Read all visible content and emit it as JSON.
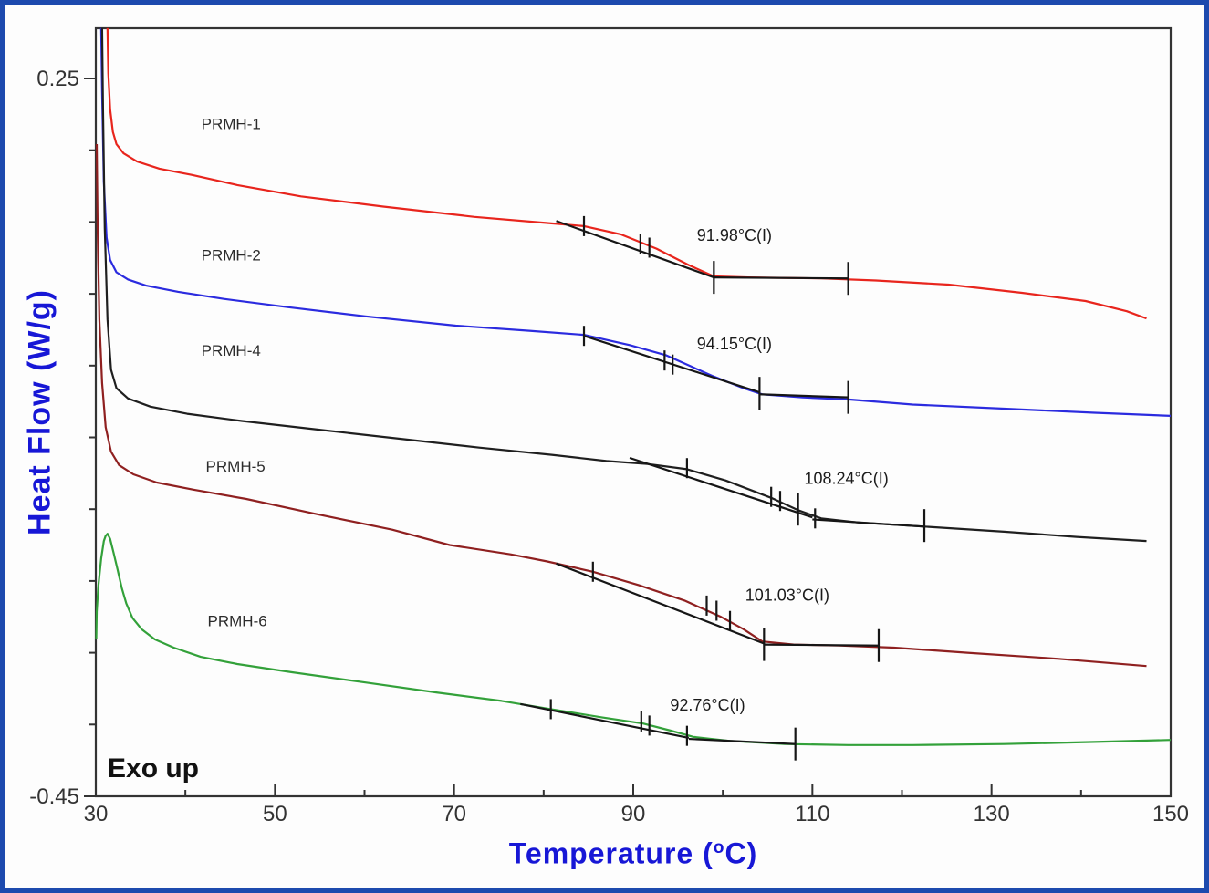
{
  "figure": {
    "border_color": "#1d4aae",
    "background": "#fdfdfd",
    "axis_color": "#333333",
    "axis_label_color": "#1717d6",
    "exo_label": "Exo up",
    "xlabel_pre": "Temperature (",
    "xlabel_sup": "o",
    "xlabel_post": "C)",
    "ylabel": "Heat Flow (W/g)"
  },
  "chart_data": {
    "type": "line",
    "title": "",
    "xlabel": "Temperature (°C)",
    "ylabel": "Heat Flow (W/g)",
    "xlim": [
      30,
      150
    ],
    "ylim": [
      -0.45,
      0.25
    ],
    "grid": false,
    "legend_position": "inline-labels",
    "xticks": [
      30,
      50,
      70,
      90,
      110,
      130,
      150
    ],
    "xticks_minor": [
      40,
      60,
      80,
      100,
      120,
      140
    ],
    "ytick_start": 0.25,
    "ytick_step": 0.07,
    "ytick_count": 11,
    "ytick_labels": [
      {
        "value": 0.25,
        "text": "0.25"
      },
      {
        "value": -0.45,
        "text": "-0.45"
      }
    ],
    "series": [
      {
        "name": "PRMH-1",
        "color": "#e8251d",
        "glass_transition_C": 91.98,
        "label": {
          "text": "PRMH-1",
          "x": 45.1,
          "y": 0.206
        },
        "points": [
          [
            31.3,
            0.299
          ],
          [
            31.4,
            0.255
          ],
          [
            31.6,
            0.22
          ],
          [
            31.9,
            0.198
          ],
          [
            32.3,
            0.186
          ],
          [
            33.1,
            0.177
          ],
          [
            34.6,
            0.169
          ],
          [
            37.1,
            0.162
          ],
          [
            40.7,
            0.156
          ],
          [
            45.8,
            0.146
          ],
          [
            52.9,
            0.135
          ],
          [
            62.1,
            0.125
          ],
          [
            72.3,
            0.115
          ],
          [
            80.4,
            0.109
          ],
          [
            84.5,
            0.106
          ],
          [
            88.6,
            0.098
          ],
          [
            92.6,
            0.084
          ],
          [
            96.2,
            0.068
          ],
          [
            99.0,
            0.057
          ],
          [
            102.8,
            0.056
          ],
          [
            111.0,
            0.055
          ],
          [
            117.1,
            0.053
          ],
          [
            125.2,
            0.049
          ],
          [
            133.4,
            0.041
          ],
          [
            140.5,
            0.033
          ],
          [
            145.1,
            0.023
          ],
          [
            147.3,
            0.016
          ]
        ]
      },
      {
        "name": "PRMH-2",
        "color": "#2b2bdf",
        "glass_transition_C": 94.15,
        "label": {
          "text": "PRMH-2",
          "x": 45.1,
          "y": 0.078
        },
        "points": [
          [
            30.6,
            0.299
          ],
          [
            30.7,
            0.237
          ],
          [
            30.9,
            0.149
          ],
          [
            31.2,
            0.095
          ],
          [
            31.6,
            0.073
          ],
          [
            32.3,
            0.061
          ],
          [
            33.6,
            0.054
          ],
          [
            35.6,
            0.048
          ],
          [
            39.2,
            0.042
          ],
          [
            44.3,
            0.035
          ],
          [
            51.4,
            0.027
          ],
          [
            60.1,
            0.018
          ],
          [
            70.2,
            0.009
          ],
          [
            78.4,
            0.004
          ],
          [
            84.5,
            0.0
          ],
          [
            89.6,
            -0.01
          ],
          [
            93.7,
            -0.02
          ],
          [
            98.8,
            -0.04
          ],
          [
            102.3,
            -0.052
          ],
          [
            104.4,
            -0.058
          ],
          [
            108.9,
            -0.061
          ],
          [
            114.0,
            -0.063
          ],
          [
            121.2,
            -0.068
          ],
          [
            131.4,
            -0.072
          ],
          [
            141.5,
            -0.076
          ],
          [
            150.0,
            -0.079
          ]
        ]
      },
      {
        "name": "PRMH-4",
        "color": "#1f1f1f",
        "glass_transition_C": 108.24,
        "label": {
          "text": "PRMH-4",
          "x": 45.1,
          "y": -0.015
        },
        "points": [
          [
            30.7,
            0.299
          ],
          [
            30.8,
            0.22
          ],
          [
            31.0,
            0.104
          ],
          [
            31.3,
            0.015
          ],
          [
            31.7,
            -0.034
          ],
          [
            32.3,
            -0.052
          ],
          [
            33.6,
            -0.062
          ],
          [
            36.1,
            -0.07
          ],
          [
            40.2,
            -0.077
          ],
          [
            46.3,
            -0.084
          ],
          [
            54.4,
            -0.092
          ],
          [
            63.6,
            -0.101
          ],
          [
            72.8,
            -0.11
          ],
          [
            80.9,
            -0.117
          ],
          [
            87.0,
            -0.123
          ],
          [
            91.6,
            -0.126
          ],
          [
            96.0,
            -0.131
          ],
          [
            100.3,
            -0.142
          ],
          [
            105.4,
            -0.159
          ],
          [
            108.4,
            -0.171
          ],
          [
            111.0,
            -0.179
          ],
          [
            115.1,
            -0.183
          ],
          [
            122.5,
            -0.187
          ],
          [
            131.4,
            -0.192
          ],
          [
            139.5,
            -0.197
          ],
          [
            147.3,
            -0.201
          ]
        ]
      },
      {
        "name": "PRMH-5",
        "color": "#8f2020",
        "glass_transition_C": 101.03,
        "label": {
          "text": "PRMH-5",
          "x": 45.6,
          "y": -0.128
        },
        "points": [
          [
            30.1,
            0.186
          ],
          [
            30.2,
            0.104
          ],
          [
            30.4,
            0.015
          ],
          [
            30.7,
            -0.047
          ],
          [
            31.1,
            -0.09
          ],
          [
            31.7,
            -0.114
          ],
          [
            32.6,
            -0.127
          ],
          [
            34.2,
            -0.136
          ],
          [
            36.8,
            -0.144
          ],
          [
            40.9,
            -0.151
          ],
          [
            46.8,
            -0.16
          ],
          [
            54.2,
            -0.174
          ],
          [
            63.1,
            -0.19
          ],
          [
            69.5,
            -0.205
          ],
          [
            76.3,
            -0.214
          ],
          [
            80.4,
            -0.221
          ],
          [
            85.5,
            -0.231
          ],
          [
            90.6,
            -0.244
          ],
          [
            95.7,
            -0.259
          ],
          [
            99.8,
            -0.275
          ],
          [
            102.3,
            -0.287
          ],
          [
            104.4,
            -0.299
          ],
          [
            107.9,
            -0.302
          ],
          [
            113.0,
            -0.303
          ],
          [
            119.1,
            -0.305
          ],
          [
            127.3,
            -0.31
          ],
          [
            137.5,
            -0.316
          ],
          [
            147.3,
            -0.323
          ]
        ]
      },
      {
        "name": "PRMH-6",
        "color": "#33a13a",
        "glass_transition_C": 92.76,
        "label": {
          "text": "PRMH-6",
          "x": 45.8,
          "y": -0.279
        },
        "points": [
          [
            30.05,
            -0.297
          ],
          [
            30.1,
            -0.27
          ],
          [
            30.3,
            -0.244
          ],
          [
            30.6,
            -0.218
          ],
          [
            30.9,
            -0.201
          ],
          [
            31.1,
            -0.196
          ],
          [
            31.3,
            -0.194
          ],
          [
            31.6,
            -0.199
          ],
          [
            32.0,
            -0.213
          ],
          [
            32.4,
            -0.228
          ],
          [
            32.9,
            -0.247
          ],
          [
            33.4,
            -0.262
          ],
          [
            34.1,
            -0.276
          ],
          [
            35.1,
            -0.287
          ],
          [
            36.6,
            -0.297
          ],
          [
            38.7,
            -0.305
          ],
          [
            41.7,
            -0.314
          ],
          [
            45.8,
            -0.321
          ],
          [
            51.9,
            -0.329
          ],
          [
            60.1,
            -0.339
          ],
          [
            68.2,
            -0.349
          ],
          [
            75.3,
            -0.357
          ],
          [
            80.8,
            -0.365
          ],
          [
            86.5,
            -0.373
          ],
          [
            91.1,
            -0.379
          ],
          [
            94.2,
            -0.386
          ],
          [
            96.7,
            -0.392
          ],
          [
            100.8,
            -0.396
          ],
          [
            106.9,
            -0.399
          ],
          [
            114.0,
            -0.4
          ],
          [
            121.2,
            -0.4
          ],
          [
            131.4,
            -0.399
          ],
          [
            141.5,
            -0.397
          ],
          [
            150.0,
            -0.395
          ]
        ]
      }
    ],
    "annotations": [
      {
        "text": "91.98°C(I)",
        "x": 101.3,
        "y": 0.097
      },
      {
        "text": "94.15°C(I)",
        "x": 101.3,
        "y": -0.009
      },
      {
        "text": "108.24°C(I)",
        "x": 113.8,
        "y": -0.14
      },
      {
        "text": "101.03°C(I)",
        "x": 107.2,
        "y": -0.254
      },
      {
        "text": "92.76°C(I)",
        "x": 98.3,
        "y": -0.361
      }
    ],
    "tangent_overlays": [
      {
        "series": "PRMH-1",
        "segments": [
          [
            81.4,
            0.111,
            99.0,
            0.056
          ],
          [
            99.0,
            0.056,
            114.0,
            0.055
          ]
        ],
        "ticks": [
          [
            84.5,
            0.106,
            "s"
          ],
          [
            90.8,
            0.089,
            "s"
          ],
          [
            91.8,
            0.085,
            "s"
          ],
          [
            99.0,
            0.056,
            "t"
          ],
          [
            114.0,
            0.055,
            "t"
          ]
        ]
      },
      {
        "series": "PRMH-2",
        "segments": [
          [
            84.5,
            -0.001,
            104.1,
            -0.056
          ],
          [
            104.1,
            -0.058,
            114.0,
            -0.061
          ]
        ],
        "ticks": [
          [
            84.5,
            -0.001,
            "s"
          ],
          [
            93.5,
            -0.025,
            "s"
          ],
          [
            94.4,
            -0.029,
            "s"
          ],
          [
            104.1,
            -0.057,
            "t"
          ],
          [
            114.0,
            -0.061,
            "t"
          ]
        ]
      },
      {
        "series": "PRMH-4",
        "segments": [
          [
            89.6,
            -0.12,
            110.0,
            -0.178
          ],
          [
            110.0,
            -0.18,
            122.5,
            -0.187
          ]
        ],
        "ticks": [
          [
            96.0,
            -0.13,
            "s"
          ],
          [
            105.4,
            -0.158,
            "s"
          ],
          [
            106.4,
            -0.162,
            "s"
          ],
          [
            108.4,
            -0.17,
            "t"
          ],
          [
            110.3,
            -0.179,
            "s"
          ],
          [
            122.5,
            -0.186,
            "t"
          ]
        ]
      },
      {
        "series": "PRMH-5",
        "segments": [
          [
            81.4,
            -0.223,
            104.6,
            -0.301
          ],
          [
            104.6,
            -0.302,
            117.4,
            -0.303
          ]
        ],
        "ticks": [
          [
            85.5,
            -0.231,
            "s"
          ],
          [
            98.2,
            -0.264,
            "s"
          ],
          [
            99.3,
            -0.269,
            "s"
          ],
          [
            100.8,
            -0.279,
            "s"
          ],
          [
            104.6,
            -0.302,
            "t"
          ],
          [
            117.4,
            -0.303,
            "t"
          ]
        ]
      },
      {
        "series": "PRMH-6",
        "segments": [
          [
            77.4,
            -0.36,
            96.2,
            -0.393
          ],
          [
            96.2,
            -0.394,
            108.1,
            -0.399
          ]
        ],
        "ticks": [
          [
            80.8,
            -0.365,
            "s"
          ],
          [
            90.9,
            -0.377,
            "s"
          ],
          [
            91.8,
            -0.381,
            "s"
          ],
          [
            96.0,
            -0.391,
            "s"
          ],
          [
            108.1,
            -0.399,
            "t"
          ]
        ]
      }
    ]
  }
}
